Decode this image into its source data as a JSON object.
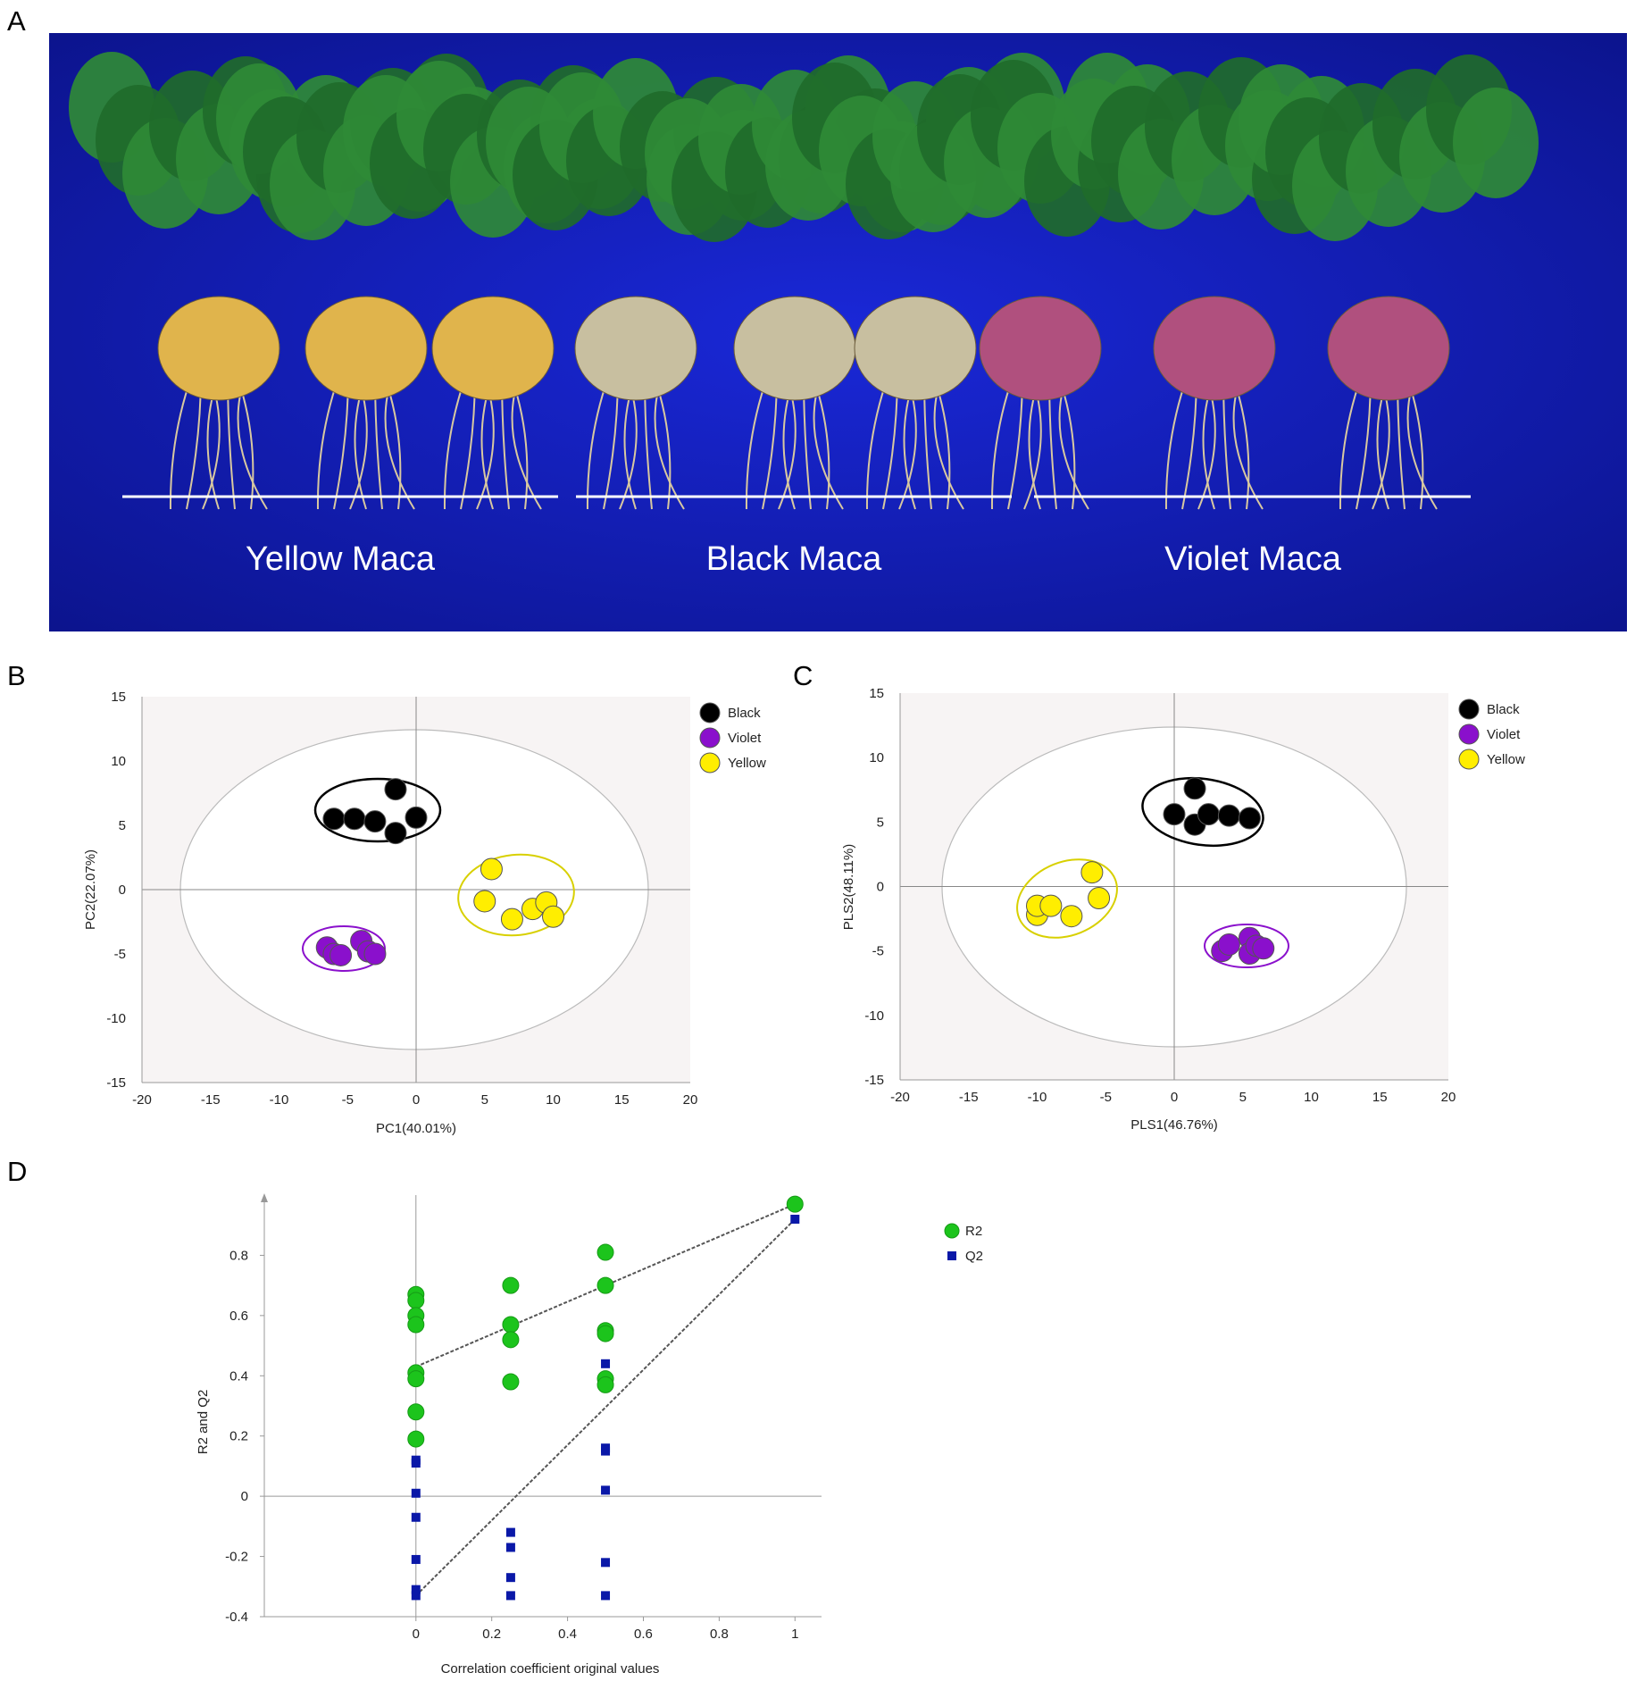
{
  "panels": {
    "a": {
      "letter": "A"
    },
    "b": {
      "letter": "B"
    },
    "c": {
      "letter": "C"
    },
    "d": {
      "letter": "D"
    }
  },
  "photo": {
    "background": "#1620c8",
    "groups": [
      {
        "label": "Yellow Maca",
        "root_color": "#e0b44c"
      },
      {
        "label": "Black Maca",
        "root_color": "#c8bfa0"
      },
      {
        "label": "Violet Maca",
        "root_color": "#b0507e"
      }
    ]
  },
  "colors": {
    "Black": "#000000",
    "Violet": "#8a10cc",
    "Yellow": "#ffee00",
    "R2": "#1cc41c",
    "Q2": "#0a18a8",
    "plot_bg": "#f7f4f4"
  },
  "chart_data": [
    {
      "id": "pca",
      "type": "scatter",
      "xlabel": "PC1(40.01%)",
      "ylabel": "PC2(22.07%)",
      "xlim": [
        -20,
        20
      ],
      "ylim": [
        -15,
        15
      ],
      "xticks": [
        "-20",
        "-15",
        "-10",
        "-5",
        "0",
        "5",
        "10",
        "15",
        "20"
      ],
      "yticks": [
        "15",
        "10",
        "5",
        "0",
        "-5",
        "-10",
        "-15"
      ],
      "legend_position": "top-right",
      "series": [
        {
          "name": "Black",
          "points": [
            [
              -6,
              5.5
            ],
            [
              -4.5,
              5.5
            ],
            [
              -3,
              5.3
            ],
            [
              -1.5,
              7.8
            ],
            [
              -1.5,
              4.4
            ],
            [
              0,
              5.6
            ]
          ]
        },
        {
          "name": "Violet",
          "points": [
            [
              -6.5,
              -4.5
            ],
            [
              -6,
              -5
            ],
            [
              -5.5,
              -5.1
            ],
            [
              -4,
              -4
            ],
            [
              -3.5,
              -4.8
            ],
            [
              -3,
              -5
            ]
          ]
        },
        {
          "name": "Yellow",
          "points": [
            [
              5.5,
              1.6
            ],
            [
              5,
              -0.9
            ],
            [
              7,
              -2.3
            ],
            [
              8.5,
              -1.5
            ],
            [
              9.5,
              -1
            ],
            [
              10,
              -2.1
            ]
          ]
        }
      ]
    },
    {
      "id": "plsda",
      "type": "scatter",
      "xlabel": "PLS1(46.76%)",
      "ylabel": "PLS2(48.11%)",
      "xlim": [
        -20,
        20
      ],
      "ylim": [
        -15,
        15
      ],
      "xticks": [
        "-20",
        "-15",
        "-10",
        "-5",
        "0",
        "5",
        "10",
        "15",
        "20"
      ],
      "yticks": [
        "15",
        "10",
        "5",
        "0",
        "-5",
        "-10",
        "-15"
      ],
      "legend_position": "top-right",
      "series": [
        {
          "name": "Black",
          "points": [
            [
              0,
              5.6
            ],
            [
              1.5,
              7.6
            ],
            [
              1.5,
              4.8
            ],
            [
              2.5,
              5.6
            ],
            [
              4,
              5.5
            ],
            [
              5.5,
              5.3
            ]
          ]
        },
        {
          "name": "Violet",
          "points": [
            [
              3.5,
              -5
            ],
            [
              4,
              -4.5
            ],
            [
              5.5,
              -4
            ],
            [
              5.5,
              -5.2
            ],
            [
              6,
              -4.6
            ],
            [
              6.5,
              -4.8
            ]
          ]
        },
        {
          "name": "Yellow",
          "points": [
            [
              -10,
              -2.2
            ],
            [
              -10,
              -1.5
            ],
            [
              -9,
              -1.5
            ],
            [
              -7.5,
              -2.3
            ],
            [
              -6,
              1.1
            ],
            [
              -5.5,
              -0.9
            ]
          ]
        }
      ]
    },
    {
      "id": "permutation",
      "type": "scatter",
      "xlabel": "Correlation coefficient original values",
      "ylabel": "R2 and Q2",
      "xlim": [
        -0.4,
        1.07
      ],
      "ylim": [
        -0.4,
        1.0
      ],
      "xticks": [
        "0",
        "0.2",
        "0.4",
        "0.6",
        "0.8",
        "1"
      ],
      "yticks": [
        "0.8",
        "0.6",
        "0.4",
        "0.2",
        "0",
        "-0.2",
        "-0.4"
      ],
      "legend_position": "top-right",
      "series": [
        {
          "name": "R2",
          "marker": "circle",
          "points": [
            [
              0,
              0.67
            ],
            [
              0,
              0.65
            ],
            [
              0,
              0.6
            ],
            [
              0,
              0.57
            ],
            [
              0,
              0.41
            ],
            [
              0,
              0.39
            ],
            [
              0,
              0.28
            ],
            [
              0,
              0.19
            ],
            [
              0.25,
              0.7
            ],
            [
              0.25,
              0.57
            ],
            [
              0.25,
              0.52
            ],
            [
              0.25,
              0.38
            ],
            [
              0.5,
              0.81
            ],
            [
              0.5,
              0.7
            ],
            [
              0.5,
              0.55
            ],
            [
              0.5,
              0.54
            ],
            [
              0.5,
              0.39
            ],
            [
              0.5,
              0.37
            ],
            [
              1,
              0.97
            ]
          ]
        },
        {
          "name": "Q2",
          "marker": "square",
          "points": [
            [
              0,
              0.12
            ],
            [
              0,
              0.11
            ],
            [
              0,
              0.01
            ],
            [
              0,
              -0.07
            ],
            [
              0,
              -0.21
            ],
            [
              0,
              -0.31
            ],
            [
              0,
              -0.33
            ],
            [
              0.25,
              -0.12
            ],
            [
              0.25,
              -0.17
            ],
            [
              0.25,
              -0.27
            ],
            [
              0.25,
              -0.33
            ],
            [
              0.5,
              0.44
            ],
            [
              0.5,
              0.16
            ],
            [
              0.5,
              0.15
            ],
            [
              0.5,
              0.02
            ],
            [
              0.5,
              -0.22
            ],
            [
              0.5,
              -0.33
            ],
            [
              1,
              0.92
            ]
          ]
        }
      ],
      "regression_lines": [
        {
          "series": "R2",
          "from": [
            0,
            0.43
          ],
          "to": [
            1,
            0.97
          ]
        },
        {
          "series": "Q2",
          "from": [
            0,
            -0.33
          ],
          "to": [
            1,
            0.92
          ]
        }
      ]
    }
  ]
}
